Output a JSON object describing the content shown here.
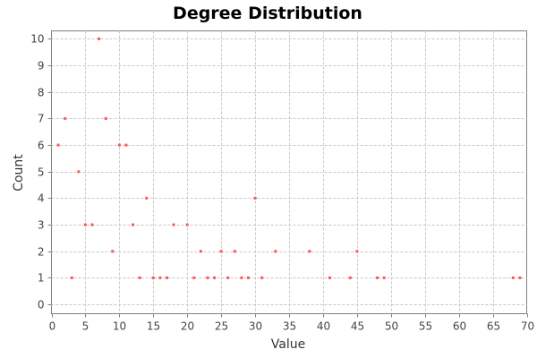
{
  "chart_data": {
    "type": "scatter",
    "title": "Degree Distribution",
    "xlabel": "Value",
    "ylabel": "Count",
    "xlim": [
      0,
      70
    ],
    "ylim": [
      -0.35,
      10.3
    ],
    "xticks": [
      0,
      5,
      10,
      15,
      20,
      25,
      30,
      35,
      40,
      45,
      50,
      55,
      60,
      65,
      70
    ],
    "yticks": [
      0,
      1,
      2,
      3,
      4,
      5,
      6,
      7,
      8,
      9,
      10
    ],
    "grid": true,
    "legend": "none",
    "point_color": "#ff5555",
    "series": [
      {
        "points": [
          [
            1,
            6
          ],
          [
            2,
            7
          ],
          [
            3,
            1
          ],
          [
            4,
            5
          ],
          [
            5,
            3
          ],
          [
            6,
            3
          ],
          [
            7,
            10
          ],
          [
            8,
            7
          ],
          [
            9,
            2
          ],
          [
            10,
            6
          ],
          [
            11,
            6
          ],
          [
            12,
            3
          ],
          [
            13,
            1
          ],
          [
            14,
            4
          ],
          [
            15,
            1
          ],
          [
            16,
            1
          ],
          [
            17,
            1
          ],
          [
            18,
            3
          ],
          [
            20,
            3
          ],
          [
            21,
            1
          ],
          [
            22,
            2
          ],
          [
            23,
            1
          ],
          [
            24,
            1
          ],
          [
            25,
            2
          ],
          [
            26,
            1
          ],
          [
            27,
            2
          ],
          [
            28,
            1
          ],
          [
            29,
            1
          ],
          [
            30,
            4
          ],
          [
            31,
            1
          ],
          [
            33,
            2
          ],
          [
            38,
            2
          ],
          [
            41,
            1
          ],
          [
            44,
            1
          ],
          [
            45,
            2
          ],
          [
            48,
            1
          ],
          [
            49,
            1
          ],
          [
            68,
            1
          ],
          [
            69,
            1
          ]
        ]
      }
    ]
  }
}
